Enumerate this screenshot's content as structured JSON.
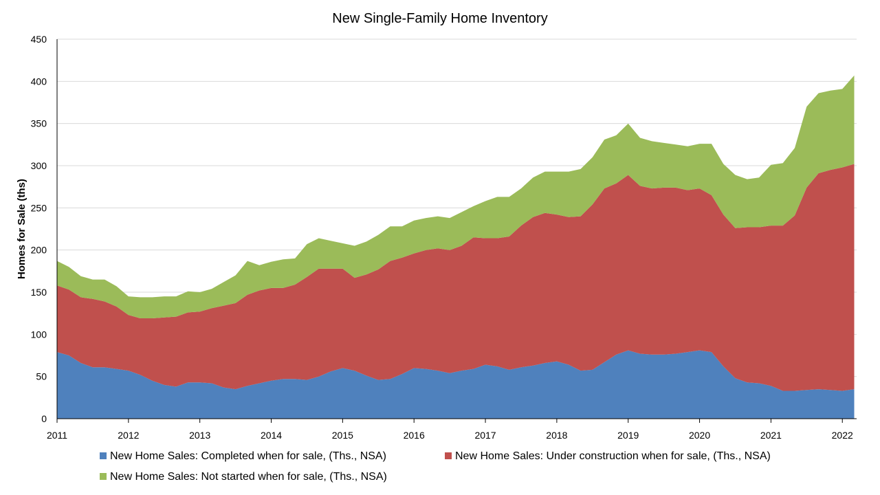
{
  "chart_data": {
    "type": "area",
    "stacked": true,
    "title": "New Single-Family Home Inventory",
    "xlabel": "",
    "ylabel": "Homes for Sale (ths)",
    "xlim": [
      2011,
      2022.2
    ],
    "ylim": [
      0,
      450
    ],
    "yticks": [
      0,
      50,
      100,
      150,
      200,
      250,
      300,
      350,
      400,
      450
    ],
    "xticks": [
      "2011",
      "2012",
      "2013",
      "2014",
      "2015",
      "2016",
      "2017",
      "2018",
      "2019",
      "2020",
      "2021",
      "2022"
    ],
    "grid": "horizontal",
    "legend_position": "bottom",
    "x": [
      "2011-01",
      "2011-03",
      "2011-05",
      "2011-07",
      "2011-09",
      "2011-11",
      "2012-01",
      "2012-03",
      "2012-05",
      "2012-07",
      "2012-09",
      "2012-11",
      "2013-01",
      "2013-03",
      "2013-05",
      "2013-07",
      "2013-09",
      "2013-11",
      "2014-01",
      "2014-03",
      "2014-05",
      "2014-07",
      "2014-09",
      "2014-11",
      "2015-01",
      "2015-03",
      "2015-05",
      "2015-07",
      "2015-09",
      "2015-11",
      "2016-01",
      "2016-03",
      "2016-05",
      "2016-07",
      "2016-09",
      "2016-11",
      "2017-01",
      "2017-03",
      "2017-05",
      "2017-07",
      "2017-09",
      "2017-11",
      "2018-01",
      "2018-03",
      "2018-05",
      "2018-07",
      "2018-09",
      "2018-11",
      "2019-01",
      "2019-03",
      "2019-05",
      "2019-07",
      "2019-09",
      "2019-11",
      "2020-01",
      "2020-03",
      "2020-05",
      "2020-07",
      "2020-09",
      "2020-11",
      "2021-01",
      "2021-03",
      "2021-05",
      "2021-07",
      "2021-09",
      "2021-11",
      "2022-01",
      "2022-03"
    ],
    "series": [
      {
        "name": "New Home Sales: Completed when for sale, (Ths., NSA)",
        "color": "#4F81BD",
        "values": [
          79,
          75,
          66,
          61,
          61,
          59,
          57,
          52,
          45,
          40,
          38,
          43,
          43,
          42,
          37,
          35,
          39,
          42,
          45,
          47,
          47,
          46,
          50,
          56,
          60,
          57,
          51,
          46,
          47,
          53,
          60,
          59,
          57,
          54,
          57,
          59,
          64,
          62,
          58,
          61,
          63,
          66,
          68,
          64,
          57,
          58,
          67,
          76,
          81,
          77,
          76,
          76,
          77,
          79,
          81,
          79,
          62,
          48,
          43,
          42,
          39,
          33,
          33,
          34,
          35,
          34,
          33,
          35
        ]
      },
      {
        "name": "New Home Sales: Under construction when for sale, (Ths., NSA)",
        "color": "#C0504D",
        "values": [
          79,
          78,
          78,
          81,
          78,
          74,
          66,
          67,
          74,
          80,
          83,
          83,
          84,
          89,
          97,
          102,
          108,
          110,
          110,
          108,
          112,
          122,
          128,
          122,
          118,
          110,
          120,
          131,
          140,
          138,
          136,
          141,
          145,
          146,
          148,
          156,
          150,
          152,
          158,
          168,
          176,
          178,
          174,
          175,
          183,
          196,
          206,
          203,
          208,
          199,
          197,
          198,
          197,
          192,
          192,
          186,
          180,
          178,
          184,
          185,
          190,
          196,
          208,
          240,
          256,
          261,
          265,
          267
        ]
      },
      {
        "name": "New Home Sales: Not started when for sale, (Ths., NSA)",
        "color": "#9BBB59",
        "values": [
          29,
          27,
          25,
          23,
          26,
          24,
          22,
          25,
          25,
          25,
          24,
          25,
          23,
          23,
          28,
          33,
          40,
          30,
          31,
          34,
          31,
          39,
          36,
          33,
          30,
          38,
          39,
          41,
          41,
          37,
          39,
          38,
          38,
          38,
          40,
          37,
          44,
          49,
          47,
          44,
          47,
          49,
          51,
          54,
          56,
          56,
          58,
          57,
          61,
          57,
          56,
          53,
          51,
          52,
          53,
          61,
          60,
          63,
          57,
          59,
          72,
          74,
          80,
          96,
          95,
          94,
          93,
          105
        ]
      }
    ]
  }
}
